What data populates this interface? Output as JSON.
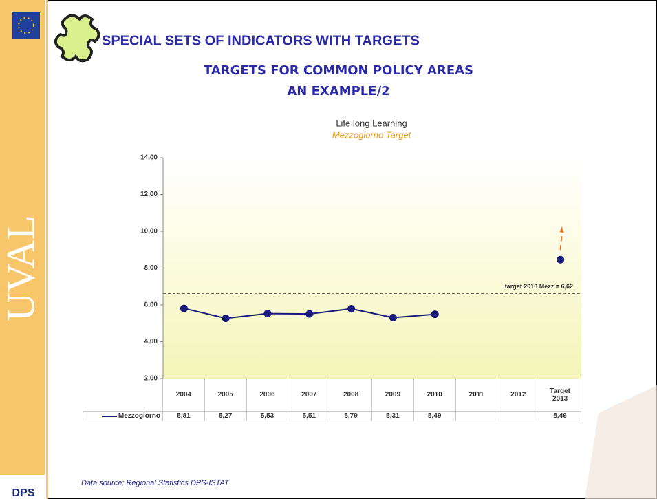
{
  "slide": {
    "title": "SPECIAL SETS OF INDICATORS WITH TARGETS",
    "subtitle_lines": [
      "TARGETS FOR COMMON POLICY AREAS",
      "AN EXAMPLE/2"
    ],
    "side_label": "UVAL",
    "logo": "DPS",
    "footer": "Data source: Regional Statistics DPS-ISTAT"
  },
  "chart_data": {
    "type": "line",
    "title": "Life long Learning",
    "subtitle": "Mezzogiorno Target",
    "categories": [
      "2004",
      "2005",
      "2006",
      "2007",
      "2008",
      "2009",
      "2010",
      "2011",
      "2012",
      "Target 2013"
    ],
    "series": [
      {
        "name": "Mezzogiorno",
        "color": "#1a1a7a",
        "values": [
          5.81,
          5.27,
          5.53,
          5.51,
          5.79,
          5.31,
          5.49,
          null,
          null,
          8.46
        ],
        "value_labels": [
          "5,81",
          "5,27",
          "5,53",
          "5,51",
          "5,79",
          "5,31",
          "5,49",
          null,
          null,
          "8,46"
        ]
      }
    ],
    "ylim": [
      2,
      14
    ],
    "yticks": [
      {
        "value": 2,
        "label": "2,00"
      },
      {
        "value": 4,
        "label": "4,00"
      },
      {
        "value": 6,
        "label": "6,00"
      },
      {
        "value": 8,
        "label": "8,00"
      },
      {
        "value": 10,
        "label": "10,00"
      },
      {
        "value": 12,
        "label": "12,00"
      },
      {
        "value": 14,
        "label": "14,00"
      }
    ],
    "reference_line": {
      "value": 6.62,
      "label": "target 2010 Mezz = 6,62"
    },
    "grid": false
  }
}
